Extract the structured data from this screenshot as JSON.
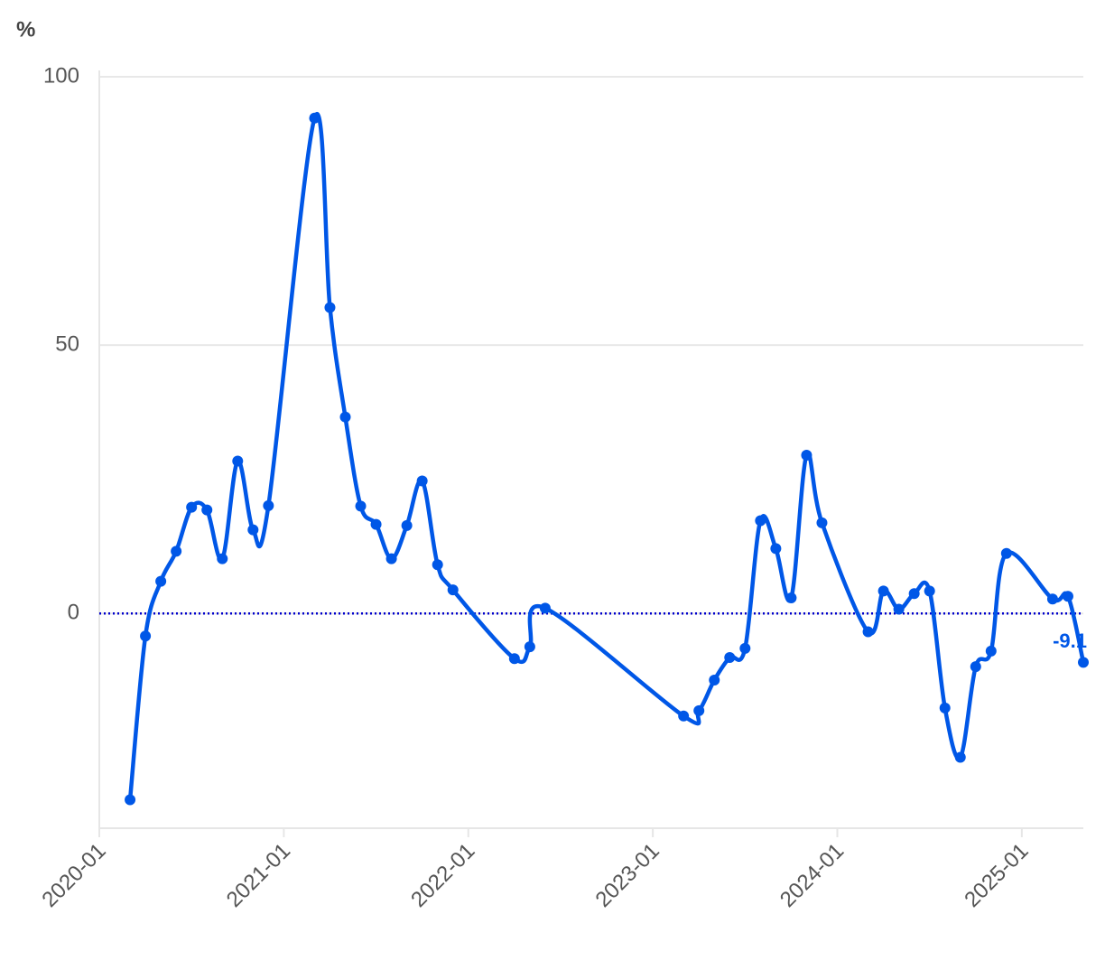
{
  "chart_data": {
    "type": "line",
    "y_label": "%",
    "x": [
      "2020-03",
      "2020-04",
      "2020-05",
      "2020-06",
      "2020-07",
      "2020-08",
      "2020-09",
      "2020-10",
      "2020-11",
      "2020-12",
      "2021-03",
      "2021-04",
      "2021-05",
      "2021-06",
      "2021-07",
      "2021-08",
      "2021-09",
      "2021-10",
      "2021-11",
      "2021-12",
      "2022-04",
      "2022-05",
      "2022-06",
      "2023-03",
      "2023-04",
      "2023-05",
      "2023-06",
      "2023-07",
      "2023-08",
      "2023-09",
      "2023-10",
      "2023-11",
      "2023-12",
      "2024-03",
      "2024-04",
      "2024-05",
      "2024-06",
      "2024-07",
      "2024-08",
      "2024-09",
      "2024-10",
      "2024-11",
      "2024-12",
      "2025-03",
      "2025-04",
      "2025-05"
    ],
    "series": [
      {
        "name": null,
        "color": "#0057e7",
        "values": [
          -34.7,
          -4.2,
          6.0,
          11.6,
          19.8,
          19.3,
          10.2,
          28.4,
          15.6,
          20.1,
          92.3,
          57.0,
          36.6,
          20.0,
          16.6,
          10.2,
          16.4,
          24.7,
          9.1,
          4.4,
          -8.4,
          -6.2,
          1.0,
          -19.1,
          -18.1,
          -12.4,
          -8.2,
          -6.5,
          17.3,
          12.1,
          2.9,
          29.5,
          16.9,
          -3.4,
          4.2,
          0.8,
          3.7,
          4.2,
          -17.6,
          -26.8,
          -9.9,
          -7.0,
          11.2,
          2.7,
          3.2,
          -9.1
        ]
      }
    ],
    "last_value_label": "-9.1",
    "xlim": [
      "2020-01",
      "2025-05"
    ],
    "xticks": [
      "2020-01",
      "2021-01",
      "2022-01",
      "2023-01",
      "2024-01",
      "2025-01"
    ],
    "ylim": [
      -40,
      100
    ],
    "yticks": [
      0,
      50,
      100
    ],
    "grid": true,
    "reference_line": {
      "value": 0,
      "color": "#0000cc"
    }
  }
}
